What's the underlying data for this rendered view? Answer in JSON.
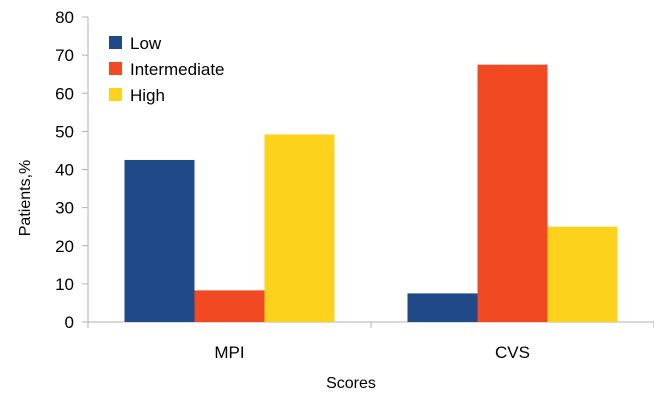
{
  "chart_data": {
    "type": "bar",
    "title": "",
    "xlabel": "Scores",
    "ylabel": "Patients,%",
    "categories": [
      "MPI",
      "CVS"
    ],
    "series": [
      {
        "name": "Low",
        "color": "#1f4a87",
        "values": [
          42.5,
          7.5
        ]
      },
      {
        "name": "Intermediate",
        "color": "#f14a22",
        "values": [
          8.3,
          67.5
        ]
      },
      {
        "name": "High",
        "color": "#fdd21c",
        "values": [
          49.2,
          25.0
        ]
      }
    ],
    "ylim": [
      0,
      80
    ],
    "yticks": [
      "0",
      "10",
      "20",
      "30",
      "40",
      "50",
      "60",
      "70",
      "80"
    ],
    "grid": false,
    "legend_position": "top-left"
  }
}
